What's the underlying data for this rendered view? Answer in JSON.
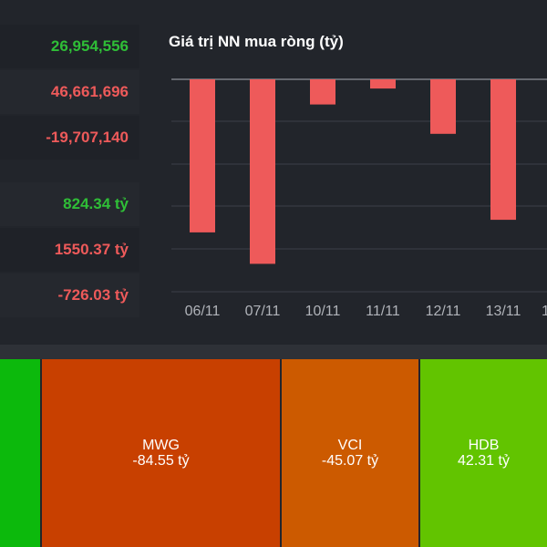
{
  "stats": [
    {
      "value": "26,954,556",
      "color": "#2fbe37"
    },
    {
      "value": "46,661,696",
      "color": "#ee5a5a"
    },
    {
      "value": "-19,707,140",
      "color": "#ee5a5a"
    },
    {
      "value": "824.34 tỷ",
      "color": "#2fbe37"
    },
    {
      "value": "1550.37 tỷ",
      "color": "#ee5a5a"
    },
    {
      "value": "-726.03 tỷ",
      "color": "#ee5a5a"
    }
  ],
  "chart_data": {
    "type": "bar",
    "title": "Giá trị NN mua ròng (tỷ)",
    "categories": [
      "06/11",
      "07/11",
      "10/11",
      "11/11",
      "12/11",
      "13/11"
    ],
    "values": [
      -365,
      -440,
      -60,
      -22,
      -130,
      -335
    ],
    "bar_color": "#ee5a5a",
    "grid": true,
    "cut_off_next_label": "1"
  },
  "treemap": [
    {
      "ticker": "",
      "value": "",
      "color": "#0cb90c"
    },
    {
      "ticker": "MWG",
      "value": "-84.55 tỷ",
      "color": "#c84000"
    },
    {
      "ticker": "VCI",
      "value": "-45.07 tỷ",
      "color": "#cc5a00"
    },
    {
      "ticker": "HDB",
      "value": "42.31 tỷ",
      "color": "#62c400"
    }
  ]
}
